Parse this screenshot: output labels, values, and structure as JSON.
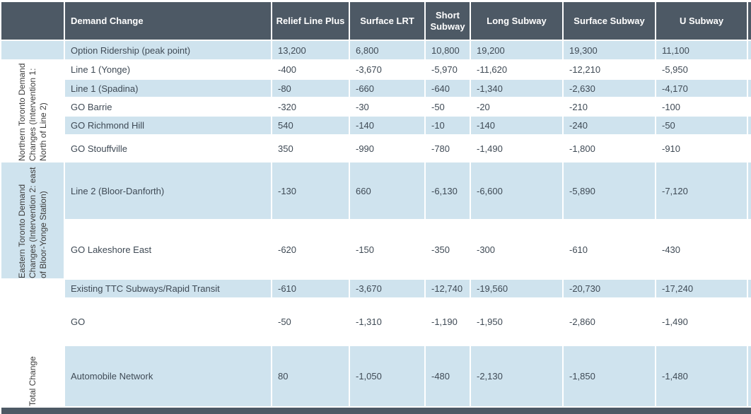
{
  "header": {
    "row_header": "Demand Change",
    "options": [
      "Relief Line Plus",
      "Surface LRT",
      "Short Subway",
      "Long Subway",
      "Surface Subway",
      "U Subway"
    ]
  },
  "sections": {
    "northern": "Northern Toronto Demand Changes (Intervention 1: North of Line 2)",
    "eastern": "Eastern Toronto Demand Changes (Intervention 2: east of Bloor-Yonge Station)",
    "total": "Total Change"
  },
  "rows": [
    {
      "label": "Option Ridership (peak point)",
      "values": [
        "13,200",
        "6,800",
        "10,800",
        "19,200",
        "19,300",
        "11,100"
      ]
    },
    {
      "label": "Line 1 (Yonge)",
      "values": [
        "-400",
        "-3,670",
        "-5,970",
        "-11,620",
        "-12,210",
        "-5,950"
      ]
    },
    {
      "label": "Line 1 (Spadina)",
      "values": [
        "-80",
        "-660",
        "-640",
        "-1,340",
        "-2,630",
        "-4,170"
      ]
    },
    {
      "label": "GO Barrie",
      "values": [
        "-320",
        "-30",
        "-50",
        "-20",
        "-210",
        "-100"
      ]
    },
    {
      "label": "GO Richmond Hill",
      "values": [
        "540",
        "-140",
        "-10",
        "-140",
        "-240",
        "-50"
      ]
    },
    {
      "label": "GO Stouffville",
      "values": [
        "350",
        "-990",
        "-780",
        "-1,490",
        "-1,800",
        "-910"
      ]
    },
    {
      "label": "Line 2 (Bloor-Danforth)",
      "values": [
        "-130",
        "660",
        "-6,130",
        "-6,600",
        "-5,890",
        "-7,120"
      ]
    },
    {
      "label": "GO Lakeshore East",
      "values": [
        "-620",
        "-150",
        "-350",
        "-300",
        "-610",
        "-430"
      ]
    },
    {
      "label": "Existing TTC Subways/Rapid Transit",
      "values": [
        "-610",
        "-3,670",
        "-12,740",
        "-19,560",
        "-20,730",
        "-17,240"
      ]
    },
    {
      "label": "GO",
      "values": [
        "-50",
        "-1,310",
        "-1,190",
        "-1,950",
        "-2,860",
        "-1,490"
      ]
    },
    {
      "label": "Automobile Network",
      "values": [
        "80",
        "-1,050",
        "-480",
        "-2,130",
        "-1,850",
        "-1,480"
      ]
    }
  ],
  "colors": {
    "header_bg": "#4d5965",
    "alt_row_bg": "#cfe3ee",
    "data_text": "#3f4a55"
  }
}
